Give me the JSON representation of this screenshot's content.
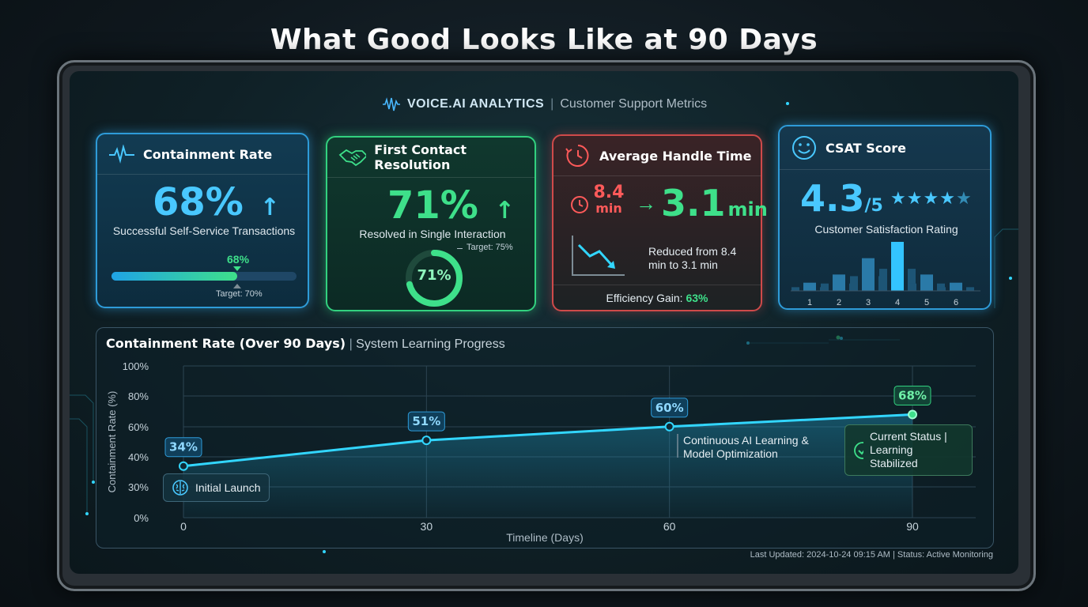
{
  "page": {
    "title": "What Good Looks Like at 90 Days"
  },
  "brand": {
    "name": "VOICE.AI ANALYTICS",
    "separator": "|",
    "subtitle": "Customer Support Metrics"
  },
  "cards": {
    "containment": {
      "title": "Containment Rate",
      "value": "68%",
      "arrow": "↑",
      "caption": "Successful Self-Service Transactions",
      "progress_label": "68%",
      "progress_value": 68,
      "target_label": "Target: 70%",
      "target_value": 70
    },
    "fcr": {
      "title": "First Contact Resolution",
      "value": "71%",
      "arrow": "↑",
      "caption": "Resolved in Single Interaction",
      "ring_label": "71%",
      "ring_value": 71,
      "target_label": "Target: 75%"
    },
    "aht": {
      "title": "Average Handle Time",
      "from_value": "8.4",
      "from_unit": "min",
      "arrow": "→",
      "to_value": "3.1",
      "to_unit": "min",
      "caption": "Reduced from 8.4 min to 3.1 min",
      "gain_label": "Efficiency Gain:",
      "gain_value": "63%"
    },
    "csat": {
      "title": "CSAT Score",
      "value": "4.3",
      "out_of": "/5",
      "stars": 4.5,
      "caption": "Customer Satisfaction Rating",
      "histogram": {
        "categories": [
          "1",
          "2",
          "3",
          "4",
          "5",
          "6"
        ],
        "values": [
          1,
          2,
          4,
          6,
          2,
          1
        ],
        "highlight": "4"
      }
    }
  },
  "chart_data": {
    "type": "line",
    "title": "Containment Rate (Over 90 Days)",
    "subtitle": "System Learning Progress",
    "xlabel": "Timeline (Days)",
    "ylabel": "Containment Rate (%)",
    "x_ticks": [
      "0",
      "30",
      "60",
      "90"
    ],
    "y_ticks": [
      "0%",
      "30%",
      "40%",
      "60%",
      "80%",
      "100%"
    ],
    "series": [
      {
        "x": [
          0,
          30,
          60,
          90
        ],
        "y": [
          34,
          51,
          60,
          68
        ],
        "labels": [
          "34%",
          "51%",
          "60%",
          "68%"
        ]
      }
    ],
    "grid": true,
    "annotations": [
      "Initial Launch",
      "Continuous AI Learning & Model Optimization",
      "Current Status | Learning Stabilized"
    ]
  },
  "footer": {
    "status": "Last Updated: 2024-10-24 09:15 AM | Status: Active Monitoring"
  },
  "colors": {
    "blue": "#2e9bd8",
    "green": "#32d17f",
    "red": "#cf4a4a",
    "cyan_line": "#32d6ff"
  }
}
